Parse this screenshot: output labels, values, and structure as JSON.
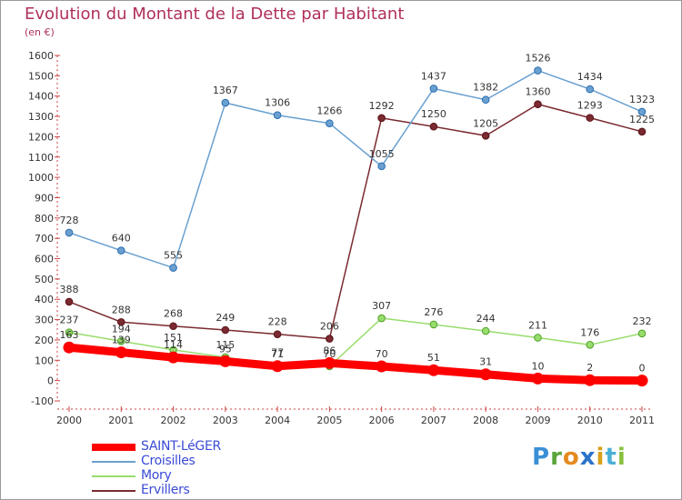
{
  "title": "Evolution du Montant de la Dette par Habitant",
  "unit": "(en €)",
  "brand": {
    "letters": [
      "P",
      "r",
      "o",
      "x",
      "i",
      "t",
      "i"
    ],
    "colors": [
      "#3a8fd6",
      "#5aa63a",
      "#e58a1f",
      "#2b73c9",
      "#d9a01a",
      "#4bb0d6",
      "#8ac040"
    ]
  },
  "chart_data": {
    "type": "line",
    "x": [
      "2000",
      "2001",
      "2002",
      "2003",
      "2004",
      "2005",
      "2006",
      "2007",
      "2008",
      "2009",
      "2010",
      "2011"
    ],
    "ylim": [
      -100,
      1600
    ],
    "yticks": [
      -100,
      0,
      100,
      200,
      300,
      400,
      500,
      600,
      700,
      800,
      900,
      1000,
      1100,
      1200,
      1300,
      1400,
      1500,
      1600
    ],
    "grid": false,
    "legend_position": "bottom-left",
    "series": [
      {
        "name": "SAINT-LéGER",
        "color": "#ff0000",
        "values": [
          163,
          139,
          114,
          95,
          71,
          86,
          70,
          51,
          31,
          10,
          2,
          0
        ]
      },
      {
        "name": "Croisilles",
        "color": "#6aa0d0",
        "values": [
          728,
          640,
          555,
          1367,
          1306,
          1266,
          1055,
          1437,
          1382,
          1526,
          1434,
          1323
        ]
      },
      {
        "name": "Mory",
        "color": "#98dd6c",
        "values": [
          237,
          194,
          151,
          115,
          77,
          70,
          307,
          276,
          244,
          211,
          176,
          232
        ]
      },
      {
        "name": "Ervillers",
        "color": "#7a2a30",
        "values": [
          388,
          288,
          268,
          249,
          228,
          206,
          1292,
          1250,
          1205,
          1360,
          1293,
          1225
        ]
      }
    ]
  }
}
